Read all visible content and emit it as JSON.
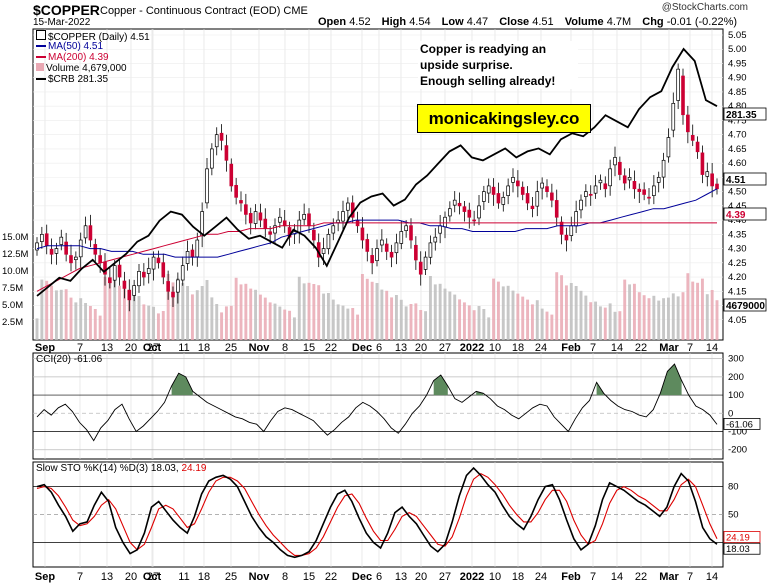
{
  "header": {
    "ticker": "$COPPER",
    "description": "Copper - Continuous Contract (EOD)",
    "exchange": "CME",
    "date": "15-Mar-2022",
    "brand": "@StockCharts.com",
    "ohlc": {
      "open_label": "Open",
      "open": "4.52",
      "high_label": "High",
      "high": "4.54",
      "low_label": "Low",
      "low": "4.47",
      "close_label": "Close",
      "close": "4.51",
      "volume_label": "Volume",
      "volume": "4.7M",
      "chg_label": "Chg",
      "chg": "-0.01 (-0.22%)"
    }
  },
  "annotation": {
    "text_lines": [
      "Copper is readying an",
      "upside surprise.",
      "Enough selling already!"
    ]
  },
  "website_banner": "monicakingsley.co",
  "legend": {
    "title": "$COPPER (Daily) 4.51",
    "ma50": "MA(50) 4.51",
    "ma200": "MA(200) 4.39",
    "volume": "Volume 4,679,000",
    "crb": "$CRB 281.35"
  },
  "colors": {
    "up": "#ffffff",
    "down": "#cc0033",
    "ma50": "#000099",
    "ma200": "#cc0033",
    "volume_up": "#bdbdbd",
    "volume_down": "#e9a8b3",
    "crb": "#000000",
    "cci_fill": "#5e8a5e",
    "cci_neg_fill": "#a8685e",
    "sto_k": "#000000",
    "sto_d": "#dd0000"
  },
  "chart_data": [
    {
      "type": "line",
      "panel": "price",
      "title": "$COPPER (Daily) 4.51",
      "ylim": [
        4.0,
        5.05
      ],
      "y_ticks": [
        "4.05",
        "4.10",
        "4.15",
        "4.20",
        "4.25",
        "4.30",
        "4.35",
        "4.40",
        "4.45",
        "4.50",
        "4.55",
        "4.60",
        "4.65",
        "4.70",
        "4.75",
        "4.80",
        "4.85",
        "4.90",
        "4.95",
        "5.00",
        "5.05"
      ],
      "left_volume_ticks": [
        "2.5M",
        "5.0M",
        "7.5M",
        "10.0M",
        "12.5M",
        "15.0M"
      ],
      "x_tick_labels": [
        "Sep",
        "7",
        "13",
        "20",
        "27",
        "Oct",
        "11",
        "18",
        "25",
        "Nov",
        "8",
        "15",
        "22",
        "Dec",
        "6",
        "13",
        "20",
        "27",
        "2022",
        "10",
        "18",
        "24",
        "Feb",
        "7",
        "14",
        "22",
        "Mar",
        "7",
        "14"
      ],
      "price_labels": {
        "crb_last": "281.35",
        "close_last": "4.51",
        "ma200_last": "4.39",
        "volume_last": "4679000"
      },
      "series": [
        {
          "name": "$COPPER",
          "kind": "candlestick",
          "close": [
            4.32,
            4.35,
            4.31,
            4.28,
            4.3,
            4.34,
            4.28,
            4.25,
            4.27,
            4.33,
            4.38,
            4.33,
            4.28,
            4.25,
            4.21,
            4.18,
            4.24,
            4.2,
            4.16,
            4.12,
            4.17,
            4.22,
            4.2,
            4.23,
            4.27,
            4.25,
            4.2,
            4.15,
            4.13,
            4.19,
            4.24,
            4.29,
            4.27,
            4.33,
            4.43,
            4.58,
            4.65,
            4.7,
            4.68,
            4.61,
            4.52,
            4.48,
            4.46,
            4.42,
            4.39,
            4.43,
            4.4,
            4.37,
            4.35,
            4.38,
            4.41,
            4.38,
            4.34,
            4.36,
            4.4,
            4.42,
            4.38,
            4.33,
            4.27,
            4.3,
            4.35,
            4.38,
            4.4,
            4.43,
            4.46,
            4.41,
            4.38,
            4.33,
            4.29,
            4.25,
            4.3,
            4.33,
            4.29,
            4.27,
            4.32,
            4.36,
            4.38,
            4.33,
            4.26,
            4.21,
            4.27,
            4.32,
            4.34,
            4.38,
            4.41,
            4.44,
            4.47,
            4.45,
            4.43,
            4.41,
            4.4,
            4.45,
            4.5,
            4.52,
            4.49,
            4.46,
            4.48,
            4.52,
            4.55,
            4.52,
            4.49,
            4.46,
            4.44,
            4.5,
            4.53,
            4.5,
            4.47,
            4.41,
            4.35,
            4.33,
            4.38,
            4.43,
            4.47,
            4.5,
            4.49,
            4.52,
            4.54,
            4.51,
            4.58,
            4.62,
            4.56,
            4.53,
            4.55,
            4.51,
            4.5,
            4.49,
            4.48,
            4.52,
            4.55,
            4.61,
            4.69,
            4.81,
            4.93,
            4.77,
            4.71,
            4.68,
            4.64,
            4.56,
            4.57,
            4.52,
            4.51
          ]
        },
        {
          "name": "MA(50)",
          "values": [
            4.3,
            4.31,
            4.31,
            4.31,
            4.31,
            4.3,
            4.3,
            4.29,
            4.29,
            4.29,
            4.28,
            4.28,
            4.28,
            4.27,
            4.27,
            4.27,
            4.27,
            4.27,
            4.28,
            4.29,
            4.3,
            4.31,
            4.32,
            4.34,
            4.35,
            4.36,
            4.37,
            4.38,
            4.39,
            4.39,
            4.4,
            4.4,
            4.4,
            4.4,
            4.4,
            4.39,
            4.39,
            4.38,
            4.38,
            4.37,
            4.37,
            4.36,
            4.36,
            4.36,
            4.36,
            4.36,
            4.37,
            4.37,
            4.37,
            4.38,
            4.38,
            4.38,
            4.39,
            4.39,
            4.4,
            4.41,
            4.42,
            4.43,
            4.44,
            4.44,
            4.45,
            4.46,
            4.47,
            4.49,
            4.51
          ]
        },
        {
          "name": "MA(200)",
          "values": [
            4.15,
            4.17,
            4.19,
            4.21,
            4.23,
            4.24,
            4.25,
            4.26,
            4.27,
            4.28,
            4.29,
            4.3,
            4.31,
            4.32,
            4.33,
            4.34,
            4.35,
            4.35,
            4.36,
            4.36,
            4.37,
            4.37,
            4.37,
            4.38,
            4.38,
            4.38,
            4.38,
            4.39,
            4.39,
            4.39,
            4.39,
            4.39,
            4.39,
            4.39,
            4.39,
            4.39,
            4.39,
            4.39,
            4.39,
            4.39,
            4.39,
            4.39,
            4.39,
            4.39,
            4.39,
            4.39,
            4.39,
            4.39,
            4.39,
            4.39,
            4.39,
            4.39,
            4.39,
            4.39,
            4.39,
            4.39,
            4.39,
            4.39,
            4.39,
            4.39,
            4.39,
            4.39,
            4.39,
            4.39,
            4.39
          ]
        },
        {
          "name": "$CRB",
          "values": [
            218,
            221,
            224,
            223,
            227,
            230,
            226,
            229,
            232,
            236,
            238,
            243,
            246,
            245,
            241,
            238,
            241,
            244,
            240,
            237,
            238,
            236,
            234,
            240,
            238,
            234,
            228,
            236,
            244,
            249,
            251,
            252,
            248,
            250,
            255,
            258,
            262,
            266,
            268,
            264,
            263,
            265,
            267,
            264,
            266,
            267,
            265,
            270,
            272,
            271,
            274,
            278,
            276,
            274,
            280,
            284,
            286,
            294,
            300,
            296,
            283,
            281
          ]
        }
      ]
    },
    {
      "type": "area",
      "panel": "cci",
      "title": "CCI(20) -61.06",
      "ylim": [
        -240,
        320
      ],
      "y_ticks": [
        "300",
        "200",
        "100",
        "0",
        "-100",
        "-200"
      ],
      "last_value": "-61.06",
      "values": [
        -20,
        20,
        -10,
        30,
        50,
        10,
        -50,
        -90,
        -150,
        -80,
        -40,
        20,
        50,
        -30,
        -100,
        -70,
        -30,
        10,
        60,
        150,
        220,
        200,
        120,
        90,
        60,
        40,
        20,
        0,
        -20,
        -30,
        -50,
        -60,
        -100,
        -40,
        10,
        30,
        20,
        0,
        -20,
        -40,
        -80,
        -120,
        -90,
        -50,
        -20,
        30,
        60,
        40,
        10,
        -30,
        -80,
        -110,
        -60,
        0,
        40,
        100,
        180,
        210,
        150,
        80,
        60,
        90,
        120,
        110,
        80,
        40,
        20,
        -10,
        -30,
        0,
        30,
        50,
        40,
        -20,
        -60,
        -100,
        -30,
        30,
        70,
        170,
        110,
        70,
        40,
        20,
        10,
        -10,
        -20,
        20,
        110,
        230,
        270,
        180,
        100,
        40,
        20,
        -10,
        -61
      ]
    },
    {
      "type": "line",
      "panel": "sto",
      "title": "Slow STO %K(14) %D(3) 18.03, 24.19",
      "ylim": [
        0,
        100
      ],
      "y_ticks": [
        "80",
        "50",
        "20"
      ],
      "last_values": {
        "k": "18.03",
        "d": "24.19"
      },
      "series": [
        {
          "name": "%K",
          "values": [
            80,
            82,
            74,
            60,
            48,
            32,
            40,
            42,
            60,
            74,
            64,
            36,
            20,
            8,
            12,
            30,
            58,
            64,
            54,
            44,
            36,
            30,
            48,
            72,
            86,
            90,
            92,
            88,
            80,
            64,
            48,
            36,
            26,
            20,
            12,
            6,
            4,
            6,
            10,
            22,
            40,
            58,
            72,
            76,
            64,
            46,
            30,
            20,
            14,
            30,
            52,
            58,
            48,
            40,
            28,
            16,
            10,
            18,
            42,
            70,
            92,
            100,
            92,
            82,
            74,
            60,
            48,
            40,
            34,
            48,
            66,
            80,
            82,
            66,
            44,
            24,
            12,
            18,
            38,
            66,
            84,
            80,
            76,
            70,
            64,
            60,
            54,
            48,
            58,
            80,
            94,
            86,
            64,
            36,
            24,
            18
          ]
        },
        {
          "name": "%D",
          "values": [
            78,
            80,
            78,
            70,
            58,
            44,
            38,
            40,
            48,
            60,
            66,
            56,
            38,
            20,
            12,
            18,
            36,
            56,
            60,
            56,
            46,
            36,
            40,
            56,
            74,
            86,
            90,
            90,
            86,
            78,
            64,
            50,
            38,
            28,
            20,
            12,
            6,
            6,
            8,
            14,
            26,
            42,
            58,
            70,
            72,
            62,
            46,
            32,
            22,
            22,
            34,
            48,
            52,
            48,
            38,
            28,
            18,
            16,
            26,
            46,
            70,
            88,
            94,
            90,
            82,
            72,
            60,
            50,
            42,
            42,
            52,
            66,
            76,
            76,
            64,
            44,
            28,
            18,
            22,
            40,
            62,
            76,
            80,
            76,
            70,
            66,
            60,
            54,
            54,
            66,
            82,
            88,
            80,
            60,
            40,
            24
          ]
        }
      ]
    }
  ]
}
